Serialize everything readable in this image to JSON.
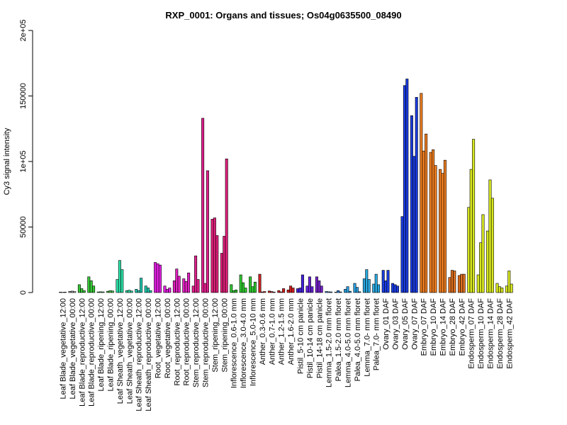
{
  "chart_data": {
    "type": "bar",
    "title": "RXP_0001: Organs and tissues; Os04g0635500_08490",
    "xlabel": "",
    "ylabel": "Cy3 signal intensity",
    "ylim": [
      0,
      200000
    ],
    "yticks": [
      {
        "value": 0,
        "label": "0"
      },
      {
        "value": 50000,
        "label": "50000"
      },
      {
        "value": 100000,
        "label": "1e+05"
      },
      {
        "value": 150000,
        "label": "150000"
      },
      {
        "value": 200000,
        "label": "2e+05"
      }
    ],
    "categories": [
      "Leaf Blade_vegetative_12:00",
      "Leaf Blade_vegetative_00:00",
      "Leaf Blade_reproductive_12:00",
      "Leaf Blade_reproductive_00:00",
      "Leaf Blade_ripening_12:00",
      "Leaf Blade_ripening_00:00",
      "Leaf Sheath_vegetative_12:00",
      "Leaf Sheath_vegetative_00:00",
      "Leaf Sheath_reproductive_12:00",
      "Leaf Sheath_reproductive_00:00",
      "Root_vegetative_12:00",
      "Root_vegetative_00:00",
      "Root_reproductive_12:00",
      "Root_reproductive_00:00",
      "Stem_reproductive_12:00",
      "Stem_reproductive_00:00",
      "Stem_ripening_12:00",
      "Stem_ripening_00:00",
      "Inflorescence_0.6-1.0 mm",
      "Inflorescence_3.0-4.0 mm",
      "Inflorescence_5.0-10 mm",
      "Anther_0.3-0.6 mm",
      "Anther_0.7-1.0 mm",
      "Anther_1.2-1.5 mm",
      "Anther_1.6-2.0 mm",
      "Pistil_5-10 cm panicle",
      "Pistil_10-14 cm panicle",
      "Pistil_14-18 cm panicle",
      "Lemma_1.5-2.0 mm floret",
      "Palea_1.5-2.0 mm floret",
      "Lemma_4.0-5.0 mm floret",
      "Palea_4.0-5.0 mm floret",
      "Lemma_7.0- mm floret",
      "Palea_7.0- mm floret",
      "Ovary_01 DAF",
      "Ovary_03 DAF",
      "Ovary_05 DAF",
      "Ovary_07 DAF",
      "Embryo_07 DAF",
      "Embryo_10 DAF",
      "Embryo_14 DAF",
      "Embryo_28 DAF",
      "Embryo_42 DAF",
      "Endosperm_07 DAF",
      "Endosperm_10 DAF",
      "Endosperm_14 DAF",
      "Endosperm_28 DAF",
      "Endosperm_42 DAF"
    ],
    "groups": [
      {
        "color": "#a8a8a8",
        "values": [
          300,
          200,
          300
        ]
      },
      {
        "color": "#a8a8a8",
        "values": [
          900,
          1100,
          700
        ]
      },
      {
        "color": "#37c837",
        "values": [
          6000,
          3000,
          1500
        ]
      },
      {
        "color": "#37c837",
        "values": [
          12000,
          9000,
          5000
        ]
      },
      {
        "color": "#4fc84f",
        "values": [
          500,
          600,
          500
        ]
      },
      {
        "color": "#4fc84f",
        "values": [
          1000,
          1500,
          1200
        ]
      },
      {
        "color": "#2ee0a8",
        "values": [
          10000,
          24500,
          17500
        ]
      },
      {
        "color": "#2ee0a8",
        "values": [
          1500,
          1800,
          1200
        ]
      },
      {
        "color": "#20c8b0",
        "values": [
          2500,
          1500,
          11000
        ]
      },
      {
        "color": "#20c8b0",
        "values": [
          5000,
          3500,
          1500
        ]
      },
      {
        "color": "#e020e0",
        "values": [
          23000,
          22000,
          21000
        ]
      },
      {
        "color": "#e020e0",
        "values": [
          5000,
          2500,
          3500
        ]
      },
      {
        "color": "#e020c0",
        "values": [
          9000,
          18000,
          12500
        ]
      },
      {
        "color": "#e020c0",
        "values": [
          10500,
          8500,
          15000
        ]
      },
      {
        "color": "#e0208c",
        "values": [
          5000,
          28000,
          10000
        ]
      },
      {
        "color": "#e0208c",
        "values": [
          133000,
          7000,
          93000
        ]
      },
      {
        "color": "#e0207a",
        "values": [
          56000,
          57000,
          43500
        ]
      },
      {
        "color": "#e0207a",
        "values": [
          30000,
          43000,
          102000
        ]
      },
      {
        "color": "#30c830",
        "values": [
          6000,
          1500,
          2000
        ]
      },
      {
        "color": "#30c830",
        "values": [
          13500,
          7500,
          3500
        ]
      },
      {
        "color": "#30c830",
        "values": [
          12000,
          4500,
          8000
        ]
      },
      {
        "color": "#d02020",
        "values": [
          14000,
          500,
          800
        ]
      },
      {
        "color": "#d02020",
        "values": [
          1200,
          800,
          400
        ]
      },
      {
        "color": "#d02020",
        "values": [
          1500,
          500,
          3000
        ]
      },
      {
        "color": "#d02020",
        "values": [
          2000,
          5000,
          3500
        ]
      },
      {
        "color": "#4422dd",
        "values": [
          3000,
          3500,
          13500
        ]
      },
      {
        "color": "#6622dd",
        "values": [
          5000,
          12000,
          4500
        ]
      },
      {
        "color": "#7722cc",
        "values": [
          12000,
          9000,
          5000
        ]
      },
      {
        "color": "#3080d8",
        "values": [
          800,
          600,
          500
        ]
      },
      {
        "color": "#3080d8",
        "values": [
          300,
          1500,
          500
        ]
      },
      {
        "color": "#2aa0e0",
        "values": [
          2500,
          4500,
          1000
        ]
      },
      {
        "color": "#2aa0e0",
        "values": [
          7000,
          4000,
          600
        ]
      },
      {
        "color": "#2aa8e0",
        "values": [
          10500,
          17500,
          10000
        ]
      },
      {
        "color": "#2aa8e0",
        "values": [
          6500,
          14000,
          6000
        ]
      },
      {
        "color": "#1a3ce0",
        "values": [
          17000,
          9000,
          17000
        ]
      },
      {
        "color": "#1a3ce0",
        "values": [
          7000,
          6000,
          5000
        ]
      },
      {
        "color": "#1a3ce0",
        "values": [
          58000,
          158000,
          163000
        ]
      },
      {
        "color": "#1a3ce0",
        "values": [
          135000,
          104000,
          149000
        ]
      },
      {
        "color": "#ee7d20",
        "values": [
          152000,
          108000,
          121000
        ]
      },
      {
        "color": "#ee7d20",
        "values": [
          107000,
          109000,
          97000
        ]
      },
      {
        "color": "#ee7d20",
        "values": [
          94000,
          91000,
          101000
        ]
      },
      {
        "color": "#e07020",
        "values": [
          11500,
          17000,
          16500
        ]
      },
      {
        "color": "#e07020",
        "values": [
          13000,
          14000,
          14000
        ]
      },
      {
        "color": "#d8e820",
        "values": [
          65000,
          94000,
          117000
        ]
      },
      {
        "color": "#d8e820",
        "values": [
          13500,
          38000,
          59500
        ]
      },
      {
        "color": "#d8e820",
        "values": [
          47000,
          86000,
          72000
        ]
      },
      {
        "color": "#d8e820",
        "values": [
          7000,
          4500,
          3500
        ]
      },
      {
        "color": "#d8e820",
        "values": [
          5000,
          16500,
          6500
        ]
      }
    ]
  }
}
